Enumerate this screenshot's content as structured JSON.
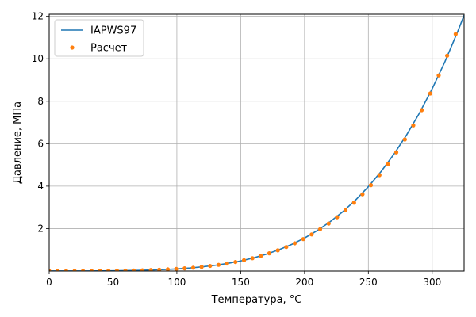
{
  "chart_data": {
    "type": "line",
    "title": "",
    "xlabel": "Температура, °C",
    "ylabel": "Давление, МПа",
    "xlim": [
      0,
      325
    ],
    "ylim": [
      0,
      12.1
    ],
    "grid": true,
    "legend_position": "top-left",
    "x_ticks": [
      0,
      50,
      100,
      150,
      200,
      250,
      300
    ],
    "y_ticks": [
      2,
      4,
      6,
      8,
      10,
      12
    ],
    "series": [
      {
        "name": "IAPWS97",
        "kind": "line",
        "color": "#1f77b4",
        "x": [
          0,
          10,
          20,
          30,
          40,
          50,
          60,
          70,
          80,
          90,
          100,
          110,
          120,
          130,
          140,
          150,
          160,
          170,
          180,
          190,
          200,
          210,
          220,
          230,
          240,
          250,
          260,
          270,
          280,
          290,
          300,
          310,
          320,
          325
        ],
        "y": [
          0.00061,
          0.0012,
          0.0023,
          0.0042,
          0.0074,
          0.0124,
          0.0199,
          0.0312,
          0.0474,
          0.0702,
          0.1014,
          0.1434,
          0.1987,
          0.2703,
          0.3615,
          0.4761,
          0.6181,
          0.7921,
          1.0028,
          1.2552,
          1.5549,
          1.9077,
          2.3196,
          2.7971,
          3.3469,
          3.9762,
          4.6923,
          5.503,
          6.4166,
          7.4418,
          8.5879,
          9.8651,
          11.284,
          12.053
        ]
      },
      {
        "name": "Расчет",
        "kind": "scatter",
        "color": "#ff7f0e",
        "x": [
          0,
          6.6,
          13.3,
          19.9,
          26.5,
          33.2,
          39.8,
          46.4,
          53.1,
          59.7,
          66.3,
          73.0,
          79.6,
          86.2,
          92.9,
          99.5,
          106.1,
          112.8,
          119.4,
          126.0,
          132.7,
          139.3,
          145.9,
          152.6,
          159.2,
          165.8,
          172.4,
          179.1,
          185.7,
          192.3,
          199.0,
          205.6,
          212.2,
          218.9,
          225.5,
          232.1,
          238.8,
          245.4,
          252.0,
          258.7,
          265.3,
          271.9,
          278.6,
          285.2,
          291.8,
          298.5,
          305.1,
          311.7,
          318.4
        ],
        "y": [
          0.0006,
          0.001,
          0.0015,
          0.0023,
          0.0035,
          0.0051,
          0.0073,
          0.0103,
          0.0143,
          0.0196,
          0.0265,
          0.0354,
          0.0466,
          0.0607,
          0.0782,
          0.0997,
          0.1258,
          0.1573,
          0.195,
          0.2398,
          0.2926,
          0.3543,
          0.426,
          0.5087,
          0.6037,
          0.7122,
          0.8355,
          0.9749,
          1.1319,
          1.308,
          1.5049,
          1.7241,
          1.9675,
          2.237,
          2.5345,
          2.862,
          3.2218,
          3.6162,
          4.0476,
          4.5187,
          5.0323,
          5.5916,
          6.2002,
          6.862,
          7.5817,
          8.3645,
          9.217,
          10.147,
          11.165
        ]
      }
    ]
  }
}
